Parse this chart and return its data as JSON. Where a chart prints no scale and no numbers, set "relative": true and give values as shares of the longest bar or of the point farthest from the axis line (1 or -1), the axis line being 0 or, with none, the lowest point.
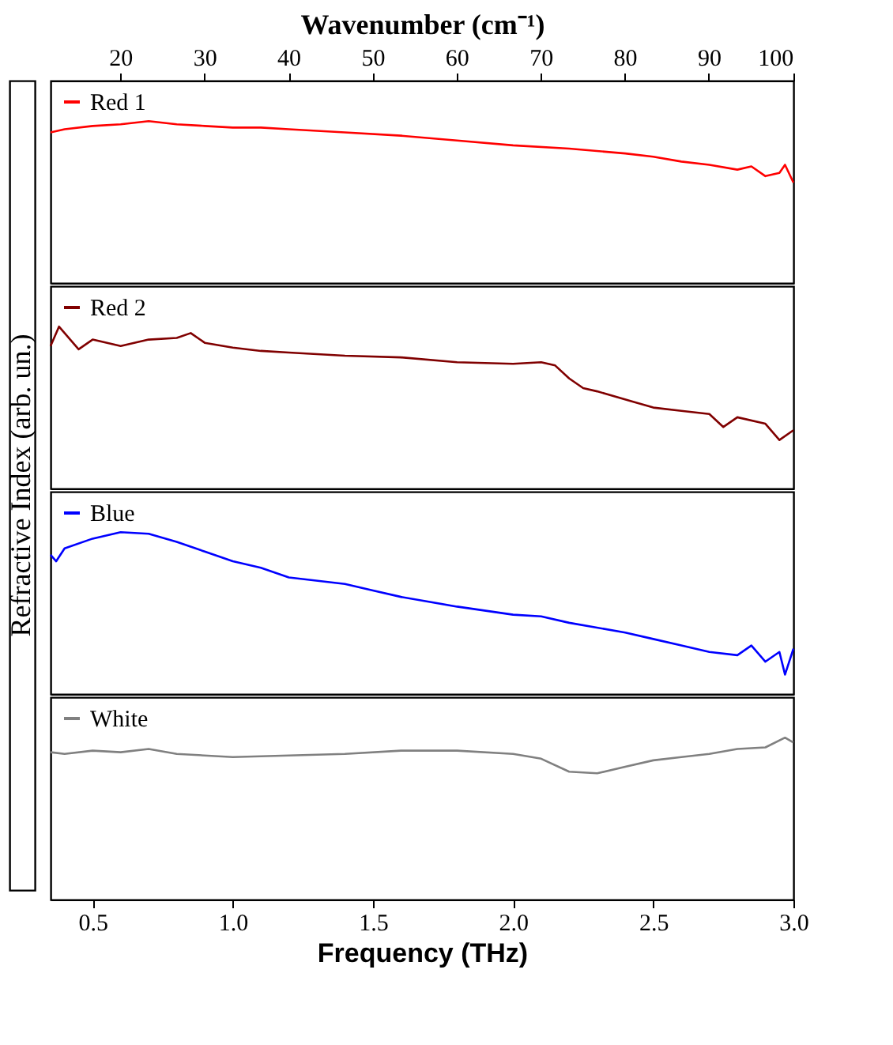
{
  "chart_data": [
    {
      "type": "line",
      "relative": true,
      "x2label": "Wavenumber (cm⁻¹)",
      "x2lim": [
        11.7,
        100.07
      ],
      "x2ticks": [
        20,
        30,
        40,
        50,
        60,
        70,
        80,
        90,
        100
      ],
      "xlim": [
        0.35,
        3.0
      ],
      "ylabel": "Refractive Index (arb. un.)",
      "tick_labels": "x2",
      "legend": "top left",
      "grid": false,
      "x": [
        0.35,
        0.4,
        0.5,
        0.6,
        0.7,
        0.8,
        0.9,
        1.0,
        1.1,
        1.2,
        1.4,
        1.6,
        1.8,
        2.0,
        2.2,
        2.4,
        2.5,
        2.6,
        2.7,
        2.8,
        2.85,
        2.9,
        2.95,
        2.97,
        3.0
      ],
      "series": [
        {
          "name": "Red 1",
          "color": "#ff0000",
          "values": [
            0.93,
            0.95,
            0.97,
            0.98,
            1.0,
            0.98,
            0.97,
            0.96,
            0.96,
            0.95,
            0.93,
            0.91,
            0.88,
            0.85,
            0.83,
            0.8,
            0.78,
            0.75,
            0.73,
            0.7,
            0.72,
            0.66,
            0.68,
            0.73,
            0.62
          ]
        }
      ]
    },
    {
      "type": "line",
      "relative": true,
      "xlim": [
        0.35,
        3.0
      ],
      "tick_labels": false,
      "legend": "top left",
      "grid": false,
      "x": [
        0.35,
        0.38,
        0.45,
        0.5,
        0.6,
        0.7,
        0.8,
        0.85,
        0.9,
        1.0,
        1.1,
        1.2,
        1.4,
        1.6,
        1.8,
        2.0,
        2.1,
        2.15,
        2.2,
        2.25,
        2.3,
        2.5,
        2.6,
        2.7,
        2.75,
        2.8,
        2.9,
        2.95,
        3.0
      ],
      "series": [
        {
          "name": "Red 2",
          "color": "#800000",
          "values": [
            0.88,
            1.0,
            0.86,
            0.92,
            0.88,
            0.92,
            0.93,
            0.96,
            0.9,
            0.87,
            0.85,
            0.84,
            0.82,
            0.81,
            0.78,
            0.77,
            0.78,
            0.76,
            0.68,
            0.62,
            0.6,
            0.5,
            0.48,
            0.46,
            0.38,
            0.44,
            0.4,
            0.3,
            0.36
          ]
        }
      ]
    },
    {
      "type": "line",
      "relative": true,
      "xlim": [
        0.35,
        3.0
      ],
      "tick_labels": false,
      "legend": "top left",
      "grid": false,
      "x": [
        0.35,
        0.37,
        0.4,
        0.5,
        0.6,
        0.7,
        0.8,
        0.9,
        1.0,
        1.1,
        1.2,
        1.4,
        1.5,
        1.6,
        1.8,
        2.0,
        2.1,
        2.2,
        2.4,
        2.5,
        2.6,
        2.7,
        2.8,
        2.85,
        2.9,
        2.95,
        2.97,
        3.0
      ],
      "series": [
        {
          "name": "Blue",
          "color": "#0000ff",
          "values": [
            0.86,
            0.82,
            0.9,
            0.96,
            1.0,
            0.99,
            0.94,
            0.88,
            0.82,
            0.78,
            0.72,
            0.68,
            0.64,
            0.6,
            0.54,
            0.49,
            0.48,
            0.44,
            0.38,
            0.34,
            0.3,
            0.26,
            0.24,
            0.3,
            0.2,
            0.26,
            0.12,
            0.28
          ]
        }
      ]
    },
    {
      "type": "line",
      "relative": true,
      "xlabel": "Frequency (THz)",
      "xlim": [
        0.35,
        3.0
      ],
      "xticks": [
        0.5,
        {
          "value": 1,
          "label": "1.0"
        },
        1.5,
        {
          "value": 2,
          "label": "2.0"
        },
        2.5,
        {
          "value": 3,
          "label": "3.0"
        }
      ],
      "tick_labels": "x",
      "legend": "top left",
      "grid": false,
      "x": [
        0.35,
        0.4,
        0.5,
        0.6,
        0.7,
        0.8,
        1.0,
        1.2,
        1.4,
        1.6,
        1.8,
        2.0,
        2.1,
        2.2,
        2.3,
        2.4,
        2.5,
        2.6,
        2.7,
        2.8,
        2.9,
        2.97,
        3.0
      ],
      "series": [
        {
          "name": "White",
          "color": "#808080",
          "values": [
            0.91,
            0.9,
            0.92,
            0.91,
            0.93,
            0.9,
            0.88,
            0.89,
            0.9,
            0.92,
            0.92,
            0.9,
            0.87,
            0.79,
            0.78,
            0.82,
            0.86,
            0.88,
            0.9,
            0.93,
            0.94,
            1.0,
            0.97
          ]
        }
      ]
    }
  ]
}
